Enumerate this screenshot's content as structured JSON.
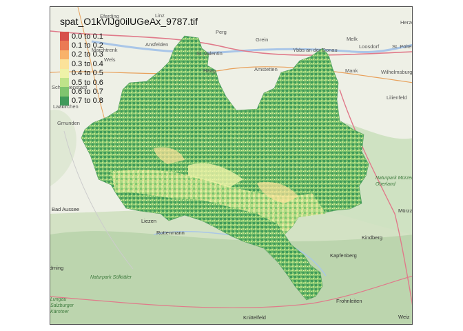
{
  "map": {
    "title": "spat_O1kVlJg0ilUGeAx_9787.tif",
    "legend": [
      {
        "label": "0.0 to 0.1",
        "color": "#d7504a"
      },
      {
        "label": "0.1 to 0.2",
        "color": "#ea7a55"
      },
      {
        "label": "0.2 to 0.3",
        "color": "#f8b26a"
      },
      {
        "label": "0.3 to 0.4",
        "color": "#fbe29a"
      },
      {
        "label": "0.4 to 0.5",
        "color": "#eef2a8"
      },
      {
        "label": "0.5 to 0.6",
        "color": "#bfe38a"
      },
      {
        "label": "0.6 to 0.7",
        "color": "#7fc46f"
      },
      {
        "label": "0.7 to 0.8",
        "color": "#3f9a5a"
      }
    ],
    "places": [
      {
        "name": "Eferding"
      },
      {
        "name": "Linz"
      },
      {
        "name": "Perg"
      },
      {
        "name": "Grein"
      },
      {
        "name": "Melk"
      },
      {
        "name": "Herzo"
      },
      {
        "name": "Loosdorf"
      },
      {
        "name": "St. Pölten"
      },
      {
        "name": "Marchtrenk"
      },
      {
        "name": "Ansfelden"
      },
      {
        "name": "St. Valentin"
      },
      {
        "name": "Ybbs an der Donau"
      },
      {
        "name": "Wels"
      },
      {
        "name": "Haag"
      },
      {
        "name": "Amstetten"
      },
      {
        "name": "Mank"
      },
      {
        "name": "Wilhelmsburg"
      },
      {
        "name": "Schwanenstadt"
      },
      {
        "name": "Laakirchen"
      },
      {
        "name": "Lilienfeld"
      },
      {
        "name": "Gmunden"
      },
      {
        "name": "Bad Aussee"
      },
      {
        "name": "Liezen"
      },
      {
        "name": "Rottenmann"
      },
      {
        "name": "Kindberg"
      },
      {
        "name": "Kapfenberg"
      },
      {
        "name": "Frohnleiten"
      },
      {
        "name": "Knittelfeld"
      },
      {
        "name": "Weiz"
      },
      {
        "name": "Mürzz"
      },
      {
        "name": "Schladming"
      }
    ],
    "parks": [
      {
        "name": "Naturpark Mürzer Oberland"
      },
      {
        "name": "Naturpark Sölktäler"
      },
      {
        "name": "Lungau Salzburger Kärntner"
      }
    ]
  }
}
